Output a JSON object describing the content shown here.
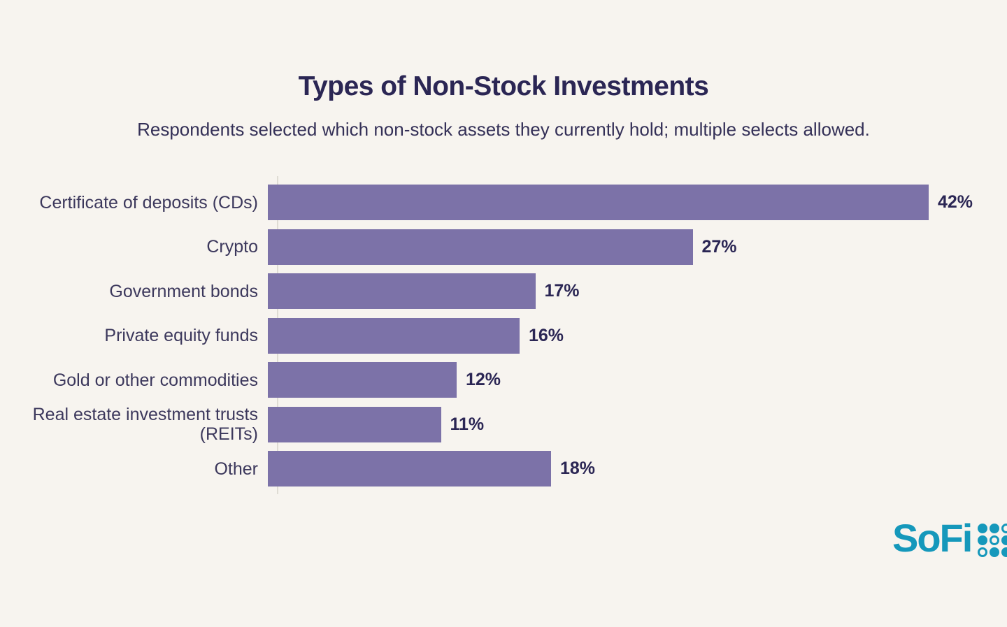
{
  "page": {
    "background_color": "#F7F4EF",
    "text_color": "#2B2654"
  },
  "header": {
    "title": "Types of Non-Stock Investments",
    "subtitle": "Respondents selected which non-stock assets they currently hold; multiple selects allowed."
  },
  "chart_data": {
    "type": "bar",
    "orientation": "horizontal",
    "title": "Types of Non-Stock Investments",
    "subtitle": "Respondents selected which non-stock assets they currently hold; multiple selects allowed.",
    "categories": [
      "Certificate of deposits (CDs)",
      "Crypto",
      "Government bonds",
      "Private equity funds",
      "Gold or other commodities",
      "Real estate investment trusts (REITs)",
      "Other"
    ],
    "values": [
      42,
      27,
      17,
      16,
      12,
      11,
      18
    ],
    "value_labels": [
      "42%",
      "27%",
      "17%",
      "16%",
      "12%",
      "11%",
      "18%"
    ],
    "xlabel": "",
    "ylabel": "",
    "xlim": [
      0,
      42
    ],
    "grid": false,
    "legend": false,
    "bar_color": "#7C72A8",
    "category_label_color": "#3C385C",
    "value_label_color": "#2B2654"
  },
  "branding": {
    "logo_text": "SoFi",
    "logo_color": "#1598BB",
    "logo_grid_pattern": [
      "filled",
      "filled",
      "outline",
      "filled",
      "outline",
      "filled",
      "outline",
      "filled",
      "filled"
    ]
  }
}
